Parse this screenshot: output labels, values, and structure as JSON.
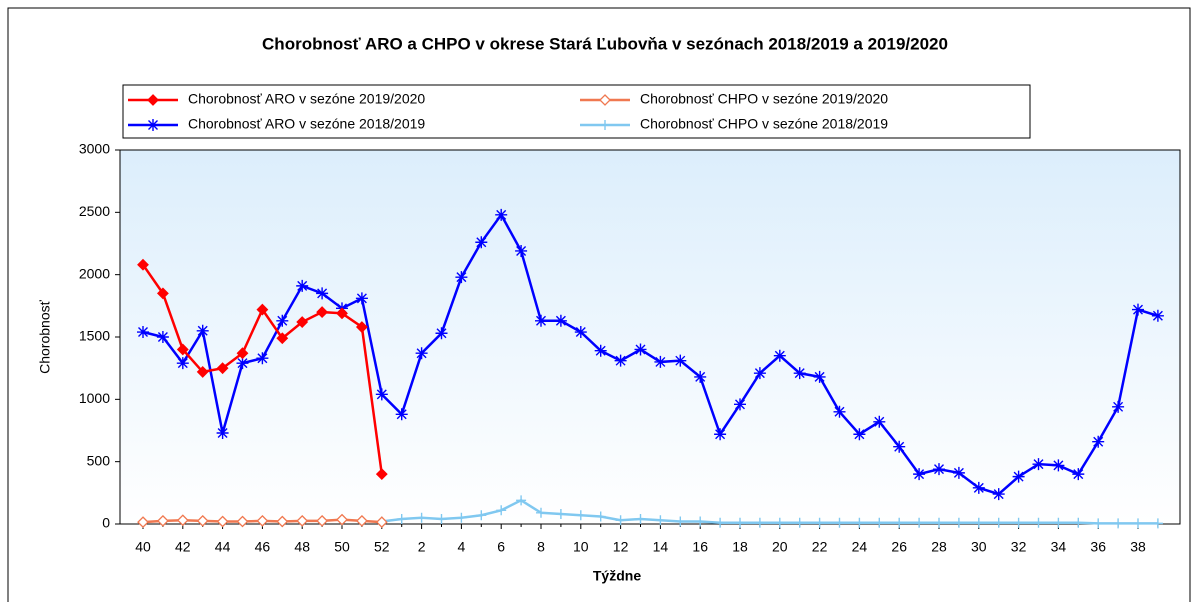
{
  "chart_data": {
    "type": "line",
    "title": "Chorobnosť ARO a CHPO v okrese Stará Ľubovňa v sezónach 2018/2019 a 2019/2020",
    "x_label": "Týždne",
    "y_label": "Chorobnosť",
    "categories": [
      40,
      null,
      42,
      null,
      44,
      null,
      46,
      null,
      48,
      null,
      50,
      null,
      52,
      null,
      2,
      null,
      4,
      null,
      6,
      null,
      8,
      null,
      10,
      null,
      12,
      null,
      14,
      null,
      16,
      null,
      18,
      null,
      20,
      null,
      22,
      null,
      24,
      null,
      26,
      null,
      28,
      null,
      30,
      null,
      32,
      null,
      34,
      null,
      36,
      null,
      38,
      null
    ],
    "ylim": [
      0,
      3000
    ],
    "yticks": [
      0,
      500,
      1000,
      1500,
      2000,
      2500,
      3000
    ],
    "legend": "top-left",
    "series": [
      {
        "name": "Chorobnosť ARO v sezóne 2019/2020",
        "color": "#ff0000",
        "marker": "diamond",
        "values": [
          2080,
          1850,
          1400,
          1220,
          1250,
          1370,
          1720,
          1490,
          1620,
          1700,
          1690,
          1580,
          400,
          null,
          null,
          null,
          null,
          null,
          null,
          null,
          null,
          null,
          null,
          null,
          null,
          null,
          null,
          null,
          null,
          null,
          null,
          null,
          null,
          null,
          null,
          null,
          null,
          null,
          null,
          null,
          null,
          null,
          null,
          null,
          null,
          null,
          null,
          null,
          null,
          null,
          null,
          null
        ]
      },
      {
        "name": "Chorobnosť ARO v sezóne 2018/2019",
        "color": "#0000ff",
        "marker": "star",
        "values": [
          1540,
          1500,
          1290,
          1550,
          730,
          1290,
          1330,
          1630,
          1910,
          1850,
          1730,
          1810,
          1040,
          880,
          1370,
          1530,
          1980,
          2260,
          2480,
          2190,
          1630,
          1630,
          1540,
          1390,
          1310,
          1400,
          1300,
          1310,
          1180,
          720,
          960,
          1210,
          1350,
          1210,
          1180,
          900,
          720,
          820,
          620,
          400,
          440,
          410,
          290,
          240,
          380,
          480,
          470,
          400,
          660,
          940,
          1720,
          1670
        ]
      },
      {
        "name": "Chorobnosť CHPO v sezóne 2019/2020",
        "color": "#f07850",
        "marker": "open-diamond",
        "values": [
          15,
          25,
          30,
          25,
          20,
          20,
          25,
          20,
          25,
          25,
          35,
          25,
          15,
          null,
          null,
          null,
          null,
          null,
          null,
          null,
          null,
          null,
          null,
          null,
          null,
          null,
          null,
          null,
          null,
          null,
          null,
          null,
          null,
          null,
          null,
          null,
          null,
          null,
          null,
          null,
          null,
          null,
          null,
          null,
          null,
          null,
          null,
          null,
          null,
          null,
          null,
          null
        ]
      },
      {
        "name": "Chorobnosť CHPO v sezóne 2018/2019",
        "color": "#80c8f0",
        "marker": "plus",
        "values": [
          null,
          null,
          null,
          null,
          null,
          null,
          null,
          null,
          null,
          null,
          null,
          null,
          20,
          40,
          50,
          40,
          50,
          70,
          110,
          190,
          90,
          80,
          70,
          60,
          30,
          40,
          30,
          20,
          20,
          10,
          10,
          10,
          10,
          10,
          10,
          10,
          10,
          10,
          10,
          10,
          10,
          10,
          10,
          10,
          10,
          10,
          10,
          10,
          5,
          5,
          5,
          5
        ]
      }
    ]
  }
}
